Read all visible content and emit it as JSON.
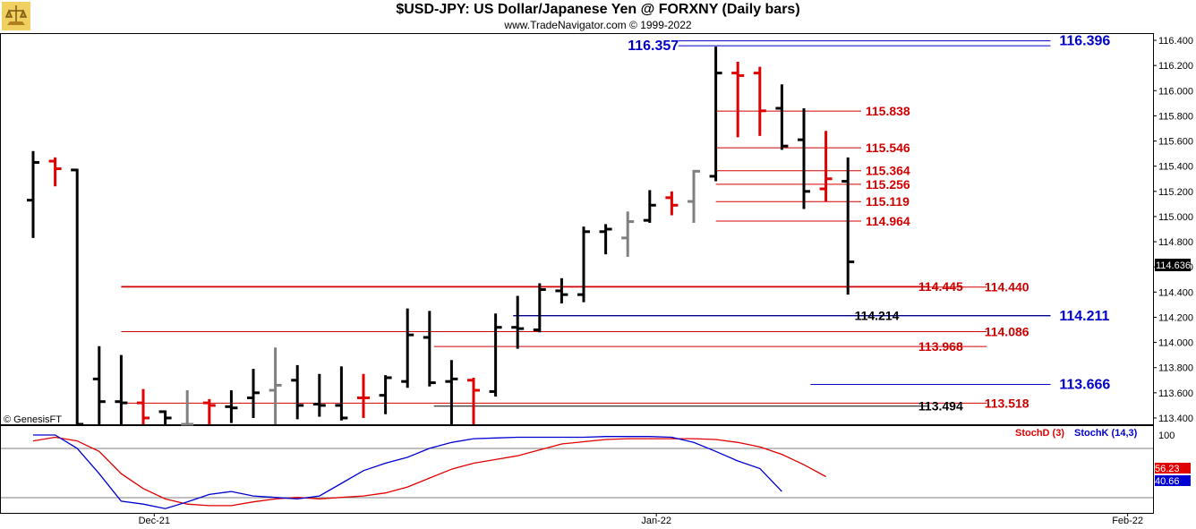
{
  "header": {
    "title": "$USD-JPY:  US Dollar/Japanese Yen @ FORXNY  (Daily bars)",
    "subtitle": "www.TradeNavigator.com © 1999-2022"
  },
  "watermark": "© GenesisFT",
  "colors": {
    "up": "#000000",
    "down": "#e00000",
    "gray": "#808080",
    "red_line": "#d00000",
    "blue_line": "#0000c8",
    "stochD": "#e00000",
    "stochK": "#0000d0"
  },
  "chart_data": [
    {
      "type": "ohlc",
      "title": "$USD-JPY:  US Dollar/Japanese Yen @ FORXNY  (Daily bars)",
      "ylim": [
        113.35,
        116.45
      ],
      "y_ticks": [
        "116.400",
        "116.200",
        "116.000",
        "115.800",
        "115.600",
        "115.400",
        "115.200",
        "115.000",
        "114.800",
        "114.600",
        "114.400",
        "114.200",
        "114.000",
        "113.800",
        "113.600",
        "113.400"
      ],
      "x_labels": [
        {
          "label": "Dec-21",
          "bar": 5.5
        },
        {
          "label": "Jan-22",
          "bar": 28.3
        },
        {
          "label": "Feb-22",
          "bar": 49.7
        }
      ],
      "last_price": "114.636",
      "bars": [
        {
          "o": 115.13,
          "h": 115.52,
          "l": 114.83,
          "c": 115.43,
          "color": "up"
        },
        {
          "o": 115.44,
          "h": 115.47,
          "l": 115.24,
          "c": 115.38,
          "color": "down"
        },
        {
          "o": 115.37,
          "h": 115.38,
          "l": 113.35,
          "c": 113.35,
          "color": "up"
        },
        {
          "o": 113.71,
          "h": 113.97,
          "l": 113.35,
          "c": 113.53,
          "color": "up"
        },
        {
          "o": 113.53,
          "h": 113.9,
          "l": 113.35,
          "c": 113.52,
          "color": "up"
        },
        {
          "o": 113.52,
          "h": 113.63,
          "l": 113.35,
          "c": 113.4,
          "color": "down"
        },
        {
          "o": 113.45,
          "h": 113.46,
          "l": 113.35,
          "c": 113.4,
          "color": "up"
        },
        {
          "o": 113.35,
          "h": 113.62,
          "l": 113.35,
          "c": 113.35,
          "color": "gray"
        },
        {
          "o": 113.52,
          "h": 113.55,
          "l": 113.35,
          "c": 113.5,
          "color": "down"
        },
        {
          "o": 113.49,
          "h": 113.62,
          "l": 113.36,
          "c": 113.48,
          "color": "up"
        },
        {
          "o": 113.56,
          "h": 113.79,
          "l": 113.4,
          "c": 113.6,
          "color": "up"
        },
        {
          "o": 113.62,
          "h": 113.96,
          "l": 113.35,
          "c": 113.66,
          "color": "gray"
        },
        {
          "o": 113.7,
          "h": 113.82,
          "l": 113.39,
          "c": 113.5,
          "color": "up"
        },
        {
          "o": 113.51,
          "h": 113.75,
          "l": 113.41,
          "c": 113.5,
          "color": "up"
        },
        {
          "o": 113.5,
          "h": 113.81,
          "l": 113.38,
          "c": 113.4,
          "color": "up"
        },
        {
          "o": 113.56,
          "h": 113.75,
          "l": 113.4,
          "c": 113.56,
          "color": "down"
        },
        {
          "o": 113.58,
          "h": 113.74,
          "l": 113.43,
          "c": 113.72,
          "color": "up"
        },
        {
          "o": 113.69,
          "h": 114.27,
          "l": 113.64,
          "c": 114.06,
          "color": "up"
        },
        {
          "o": 114.04,
          "h": 114.25,
          "l": 113.65,
          "c": 113.68,
          "color": "up"
        },
        {
          "o": 113.69,
          "h": 113.86,
          "l": 113.35,
          "c": 113.71,
          "color": "up"
        },
        {
          "o": 113.7,
          "h": 113.72,
          "l": 113.35,
          "c": 113.62,
          "color": "down"
        },
        {
          "o": 113.61,
          "h": 114.23,
          "l": 113.57,
          "c": 114.12,
          "color": "up"
        },
        {
          "o": 114.12,
          "h": 114.37,
          "l": 113.95,
          "c": 114.11,
          "color": "up"
        },
        {
          "o": 114.1,
          "h": 114.47,
          "l": 114.08,
          "c": 114.42,
          "color": "up"
        },
        {
          "o": 114.41,
          "h": 114.51,
          "l": 114.31,
          "c": 114.38,
          "color": "up"
        },
        {
          "o": 114.38,
          "h": 114.92,
          "l": 114.32,
          "c": 114.88,
          "color": "up"
        },
        {
          "o": 114.88,
          "h": 114.94,
          "l": 114.7,
          "c": 114.9,
          "color": "up"
        },
        {
          "o": 114.83,
          "h": 115.04,
          "l": 114.68,
          "c": 114.96,
          "color": "gray"
        },
        {
          "o": 114.97,
          "h": 115.21,
          "l": 114.95,
          "c": 115.09,
          "color": "up"
        },
        {
          "o": 115.15,
          "h": 115.2,
          "l": 115.01,
          "c": 115.09,
          "color": "down"
        },
        {
          "o": 115.12,
          "h": 115.37,
          "l": 114.95,
          "c": 115.36,
          "color": "gray"
        },
        {
          "o": 115.32,
          "h": 116.35,
          "l": 115.28,
          "c": 116.14,
          "color": "up"
        },
        {
          "o": 116.14,
          "h": 116.23,
          "l": 115.63,
          "c": 116.12,
          "color": "down"
        },
        {
          "o": 116.14,
          "h": 116.19,
          "l": 115.64,
          "c": 115.84,
          "color": "down"
        },
        {
          "o": 115.86,
          "h": 116.05,
          "l": 115.53,
          "c": 115.56,
          "color": "up"
        },
        {
          "o": 115.61,
          "h": 115.86,
          "l": 115.06,
          "c": 115.2,
          "color": "up"
        },
        {
          "o": 115.22,
          "h": 115.68,
          "l": 115.12,
          "c": 115.3,
          "color": "down"
        },
        {
          "o": 115.28,
          "h": 115.47,
          "l": 114.38,
          "c": 114.64,
          "color": "up"
        }
      ],
      "levels": [
        {
          "value": 116.357,
          "label": "116.357",
          "x1_bar": 29.3,
          "x2_bar": 46.2,
          "color": "blue_line",
          "label_side": "left",
          "label_bar": 27.0,
          "big": true
        },
        {
          "value": 116.396,
          "label": "116.396",
          "x1_bar": 29.3,
          "x2_bar": 46.2,
          "color": "blue_line",
          "label_side": "right",
          "label_bar": 46.6,
          "big": true
        },
        {
          "value": 115.838,
          "label": "115.838",
          "x1_bar": 31.0,
          "x2_bar": 37.6,
          "color": "red_line",
          "label_side": "right",
          "label_bar": 37.8,
          "big": false
        },
        {
          "value": 115.546,
          "label": "115.546",
          "x1_bar": 31.0,
          "x2_bar": 37.6,
          "color": "red_line",
          "label_side": "right",
          "label_bar": 37.8,
          "big": false
        },
        {
          "value": 115.364,
          "label": "115.364",
          "x1_bar": 31.0,
          "x2_bar": 37.6,
          "color": "red_line",
          "label_side": "right",
          "label_bar": 37.8,
          "big": false
        },
        {
          "value": 115.256,
          "label": "115.256",
          "x1_bar": 31.0,
          "x2_bar": 37.6,
          "color": "red_line",
          "label_side": "right",
          "label_bar": 37.8,
          "big": false
        },
        {
          "value": 115.119,
          "label": "115.119",
          "x1_bar": 31.0,
          "x2_bar": 37.6,
          "color": "red_line",
          "label_side": "right",
          "label_bar": 37.8,
          "big": false
        },
        {
          "value": 114.964,
          "label": "114.964",
          "x1_bar": 31.0,
          "x2_bar": 37.6,
          "color": "red_line",
          "label_side": "right",
          "label_bar": 37.8,
          "big": false
        },
        {
          "value": 114.445,
          "label": "114.445",
          "x1_bar": 4.0,
          "x2_bar": 40.7,
          "color": "red_line",
          "label_side": "right",
          "label_bar": 40.2,
          "big": false
        },
        {
          "value": 114.44,
          "label": "114.440",
          "x1_bar": 4.0,
          "x2_bar": 43.3,
          "color": "red_line",
          "label_side": "right",
          "label_bar": 43.2,
          "big": false
        },
        {
          "value": 114.214,
          "label": "114.214",
          "x1_bar": 21.8,
          "x2_bar": 46.2,
          "color": "up",
          "label_side": "right",
          "label_bar": 37.3,
          "big": false
        },
        {
          "value": 114.211,
          "label": "114.211",
          "x1_bar": 21.8,
          "x2_bar": 46.2,
          "color": "blue_line",
          "label_side": "right",
          "label_bar": 46.6,
          "big": true
        },
        {
          "value": 114.086,
          "label": "114.086",
          "x1_bar": 4.0,
          "x2_bar": 43.3,
          "color": "red_line",
          "label_side": "right",
          "label_bar": 43.2,
          "big": false
        },
        {
          "value": 113.968,
          "label": "113.968",
          "x1_bar": 18.2,
          "x2_bar": 43.3,
          "color": "red_line",
          "label_side": "right",
          "label_bar": 40.2,
          "big": false
        },
        {
          "value": 113.666,
          "label": "113.666",
          "x1_bar": 35.3,
          "x2_bar": 46.2,
          "color": "blue_line",
          "label_side": "right",
          "label_bar": 46.6,
          "big": true
        },
        {
          "value": 113.518,
          "label": "113.518",
          "x1_bar": 4.0,
          "x2_bar": 43.3,
          "color": "red_line",
          "label_side": "right",
          "label_bar": 43.2,
          "big": false
        },
        {
          "value": 113.494,
          "label": "113.494",
          "x1_bar": 18.2,
          "x2_bar": 40.7,
          "color": "up",
          "label_side": "right",
          "label_bar": 40.2,
          "big": false
        }
      ]
    },
    {
      "type": "line",
      "title": "",
      "ylim": [
        0,
        100
      ],
      "y_ticks": [
        "100"
      ],
      "legend": [
        "StochD (3)",
        "StochK (14,3)"
      ],
      "last_values": {
        "StochD": "56.23",
        "StochK": "40.66"
      },
      "series": [
        {
          "name": "StochD (3)",
          "color": "stochD",
          "values": [
            [
              0,
              92
            ],
            [
              1,
              97
            ],
            [
              2,
              92
            ],
            [
              3,
              78
            ],
            [
              4,
              48
            ],
            [
              5,
              28
            ],
            [
              6,
              14
            ],
            [
              7,
              7
            ],
            [
              8,
              5
            ],
            [
              9,
              5
            ],
            [
              10,
              10
            ],
            [
              11,
              14
            ],
            [
              12,
              16
            ],
            [
              13,
              14
            ],
            [
              14,
              16
            ],
            [
              15,
              18
            ],
            [
              16,
              22
            ],
            [
              17,
              30
            ],
            [
              18,
              42
            ],
            [
              19,
              54
            ],
            [
              20,
              62
            ],
            [
              21,
              67
            ],
            [
              22,
              72
            ],
            [
              23,
              80
            ],
            [
              24,
              88
            ],
            [
              25,
              91
            ],
            [
              26,
              94
            ],
            [
              27,
              95
            ],
            [
              28,
              95
            ],
            [
              29,
              95
            ],
            [
              30,
              95
            ],
            [
              31,
              94
            ],
            [
              32,
              90
            ],
            [
              33,
              84
            ],
            [
              34,
              74
            ],
            [
              35,
              60
            ],
            [
              36,
              44
            ]
          ]
        },
        {
          "name": "StochK (14,3)",
          "color": "stochK",
          "values": [
            [
              0,
              100
            ],
            [
              1,
              100
            ],
            [
              2,
              82
            ],
            [
              3,
              48
            ],
            [
              4,
              11
            ],
            [
              5,
              7
            ],
            [
              6,
              1
            ],
            [
              7,
              10
            ],
            [
              8,
              20
            ],
            [
              9,
              24
            ],
            [
              10,
              18
            ],
            [
              11,
              16
            ],
            [
              12,
              14
            ],
            [
              13,
              18
            ],
            [
              14,
              35
            ],
            [
              15,
              52
            ],
            [
              16,
              62
            ],
            [
              17,
              70
            ],
            [
              18,
              82
            ],
            [
              19,
              90
            ],
            [
              20,
              95
            ],
            [
              21,
              96
            ],
            [
              22,
              97
            ],
            [
              23,
              97
            ],
            [
              24,
              97
            ],
            [
              25,
              97
            ],
            [
              26,
              98
            ],
            [
              27,
              98
            ],
            [
              28,
              98
            ],
            [
              29,
              97
            ],
            [
              30,
              90
            ],
            [
              31,
              78
            ],
            [
              32,
              65
            ],
            [
              33,
              55
            ],
            [
              34,
              24
            ]
          ]
        }
      ]
    }
  ]
}
